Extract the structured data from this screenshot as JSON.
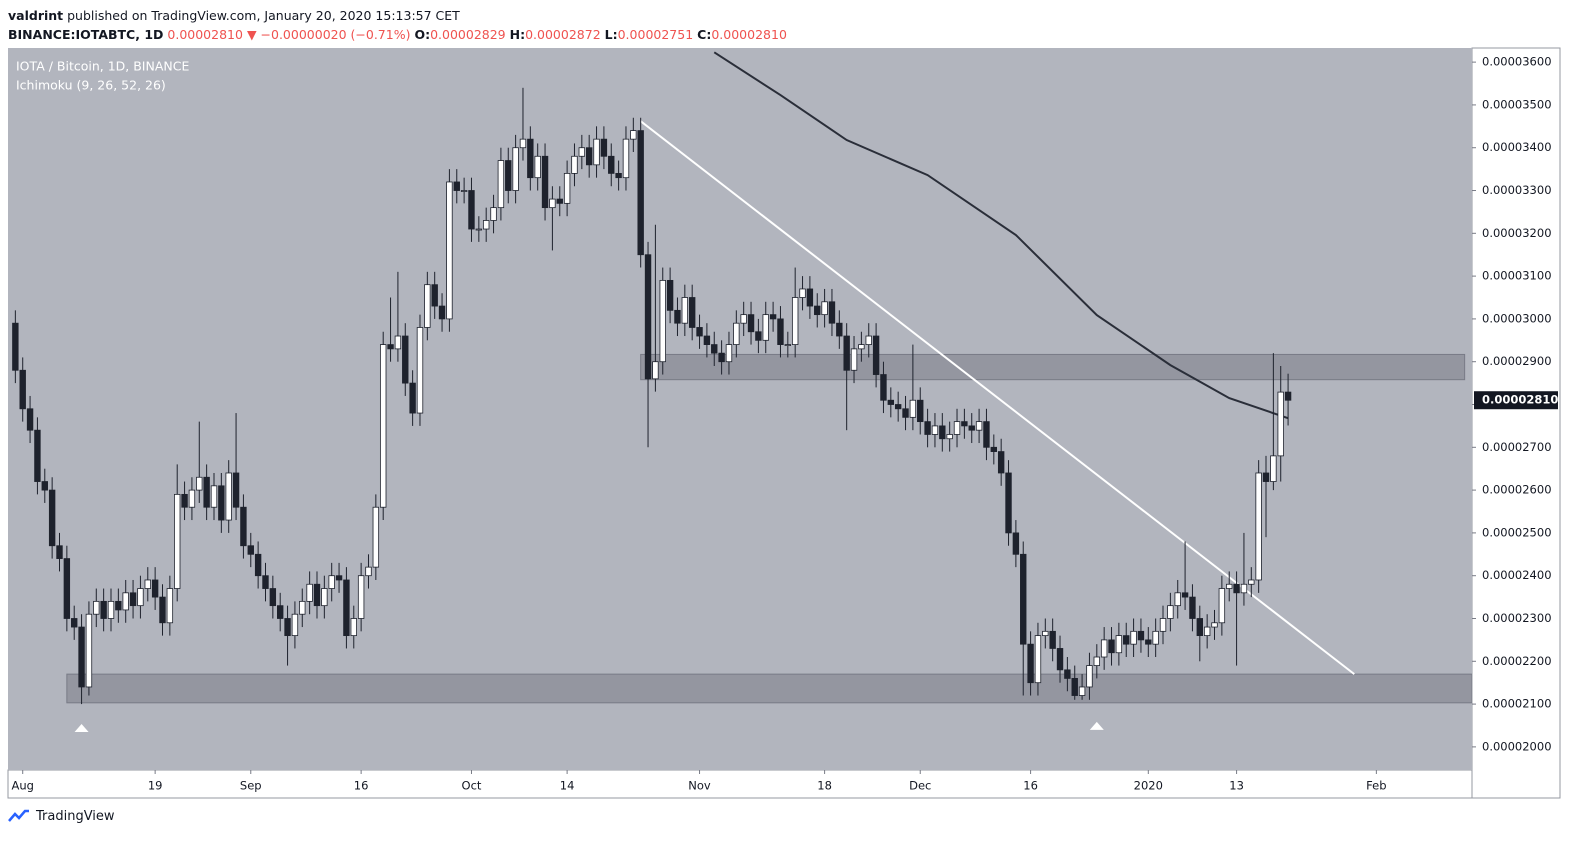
{
  "header": {
    "author": "valdrint",
    "published": " published on TradingView.com, January 20, 2020 15:13:57 CET",
    "symbol": "BINANCE:IOTABTC, 1D",
    "price": "0.00002810",
    "change": "▼ −0.00000020 (−0.71%)",
    "ohlc": [
      {
        "label": "O:",
        "value": "0.00002829"
      },
      {
        "label": "H:",
        "value": "0.00002872"
      },
      {
        "label": "L:",
        "value": "0.00002751"
      },
      {
        "label": "C:",
        "value": "0.00002810"
      }
    ]
  },
  "footer": {
    "brand": "TradingView"
  },
  "chart_data": {
    "type": "candlestick",
    "title": "IOTA / Bitcoin, 1D, BINANCE",
    "subtitle": "Ichimoku (9, 26, 52, 26)",
    "up_color": "#ffffff",
    "down_color": "#1e222d",
    "wick_color": "#1e222d",
    "background": "#b2b5be",
    "xlim": [
      "2019-07-30",
      "2020-02-14"
    ],
    "ylim": [
      1.946e-05,
      3.633e-05
    ],
    "xticks": [
      {
        "value": "2019-08-01",
        "label": "Aug"
      },
      {
        "value": "2019-08-19",
        "label": "19"
      },
      {
        "value": "2019-09-01",
        "label": "Sep"
      },
      {
        "value": "2019-09-16",
        "label": "16"
      },
      {
        "value": "2019-10-01",
        "label": "Oct"
      },
      {
        "value": "2019-10-14",
        "label": "14"
      },
      {
        "value": "2019-11-01",
        "label": "Nov"
      },
      {
        "value": "2019-11-18",
        "label": "18"
      },
      {
        "value": "2019-12-01",
        "label": "Dec"
      },
      {
        "value": "2019-12-16",
        "label": "16"
      },
      {
        "value": "2020-01-01",
        "label": "2020"
      },
      {
        "value": "2020-01-13",
        "label": "13"
      },
      {
        "value": "2020-02-01",
        "label": "Feb"
      }
    ],
    "yticks": [
      {
        "value": 2e-05,
        "label": "0.00002000"
      },
      {
        "value": 2.1e-05,
        "label": "0.00002100"
      },
      {
        "value": 2.2e-05,
        "label": "0.00002200"
      },
      {
        "value": 2.3e-05,
        "label": "0.00002300"
      },
      {
        "value": 2.4e-05,
        "label": "0.00002400"
      },
      {
        "value": 2.5e-05,
        "label": "0.00002500"
      },
      {
        "value": 2.6e-05,
        "label": "0.00002600"
      },
      {
        "value": 2.7e-05,
        "label": "0.00002700"
      },
      {
        "value": 2.8e-05,
        "label": "0.00002800"
      },
      {
        "value": 2.9e-05,
        "label": "0.00002900"
      },
      {
        "value": 3e-05,
        "label": "0.00003000"
      },
      {
        "value": 3.1e-05,
        "label": "0.00003100"
      },
      {
        "value": 3.2e-05,
        "label": "0.00003200"
      },
      {
        "value": 3.3e-05,
        "label": "0.00003300"
      },
      {
        "value": 3.4e-05,
        "label": "0.00003400"
      },
      {
        "value": 3.5e-05,
        "label": "0.00003500"
      },
      {
        "value": 3.6e-05,
        "label": "0.00003600"
      }
    ],
    "last_price": {
      "value": 2.81e-05,
      "label": "0.00002810"
    },
    "x": [
      "2019-07-31",
      "2019-08-01",
      "2019-08-02",
      "2019-08-03",
      "2019-08-04",
      "2019-08-05",
      "2019-08-06",
      "2019-08-07",
      "2019-08-08",
      "2019-08-09",
      "2019-08-10",
      "2019-08-11",
      "2019-08-12",
      "2019-08-13",
      "2019-08-14",
      "2019-08-15",
      "2019-08-16",
      "2019-08-17",
      "2019-08-18",
      "2019-08-19",
      "2019-08-20",
      "2019-08-21",
      "2019-08-22",
      "2019-08-23",
      "2019-08-24",
      "2019-08-25",
      "2019-08-26",
      "2019-08-27",
      "2019-08-28",
      "2019-08-29",
      "2019-08-30",
      "2019-08-31",
      "2019-09-01",
      "2019-09-02",
      "2019-09-03",
      "2019-09-04",
      "2019-09-05",
      "2019-09-06",
      "2019-09-07",
      "2019-09-08",
      "2019-09-09",
      "2019-09-10",
      "2019-09-11",
      "2019-09-12",
      "2019-09-13",
      "2019-09-14",
      "2019-09-15",
      "2019-09-16",
      "2019-09-17",
      "2019-09-18",
      "2019-09-19",
      "2019-09-20",
      "2019-09-21",
      "2019-09-22",
      "2019-09-23",
      "2019-09-24",
      "2019-09-25",
      "2019-09-26",
      "2019-09-27",
      "2019-09-28",
      "2019-09-29",
      "2019-09-30",
      "2019-10-01",
      "2019-10-02",
      "2019-10-03",
      "2019-10-04",
      "2019-10-05",
      "2019-10-06",
      "2019-10-07",
      "2019-10-08",
      "2019-10-09",
      "2019-10-10",
      "2019-10-11",
      "2019-10-12",
      "2019-10-13",
      "2019-10-14",
      "2019-10-15",
      "2019-10-16",
      "2019-10-17",
      "2019-10-18",
      "2019-10-19",
      "2019-10-20",
      "2019-10-21",
      "2019-10-22",
      "2019-10-23",
      "2019-10-24",
      "2019-10-25",
      "2019-10-26",
      "2019-10-27",
      "2019-10-28",
      "2019-10-29",
      "2019-10-30",
      "2019-10-31",
      "2019-11-01",
      "2019-11-02",
      "2019-11-03",
      "2019-11-04",
      "2019-11-05",
      "2019-11-06",
      "2019-11-07",
      "2019-11-08",
      "2019-11-09",
      "2019-11-10",
      "2019-11-11",
      "2019-11-12",
      "2019-11-13",
      "2019-11-14",
      "2019-11-15",
      "2019-11-16",
      "2019-11-17",
      "2019-11-18",
      "2019-11-19",
      "2019-11-20",
      "2019-11-21",
      "2019-11-22",
      "2019-11-23",
      "2019-11-24",
      "2019-11-25",
      "2019-11-26",
      "2019-11-27",
      "2019-11-28",
      "2019-11-29",
      "2019-11-30",
      "2019-12-01",
      "2019-12-02",
      "2019-12-03",
      "2019-12-04",
      "2019-12-05",
      "2019-12-06",
      "2019-12-07",
      "2019-12-08",
      "2019-12-09",
      "2019-12-10",
      "2019-12-11",
      "2019-12-12",
      "2019-12-13",
      "2019-12-14",
      "2019-12-15",
      "2019-12-16",
      "2019-12-17",
      "2019-12-18",
      "2019-12-19",
      "2019-12-20",
      "2019-12-21",
      "2019-12-22",
      "2019-12-23",
      "2019-12-24",
      "2019-12-25",
      "2019-12-26",
      "2019-12-27",
      "2019-12-28",
      "2019-12-29",
      "2019-12-30",
      "2019-12-31",
      "2020-01-01",
      "2020-01-02",
      "2020-01-03",
      "2020-01-04",
      "2020-01-05",
      "2020-01-06",
      "2020-01-07",
      "2020-01-08",
      "2020-01-09",
      "2020-01-10",
      "2020-01-11",
      "2020-01-12",
      "2020-01-13",
      "2020-01-14",
      "2020-01-15",
      "2020-01-16",
      "2020-01-17",
      "2020-01-18",
      "2020-01-19",
      "2020-01-20"
    ],
    "open": [
      2.99e-05,
      2.88e-05,
      2.79e-05,
      2.74e-05,
      2.62e-05,
      2.6e-05,
      2.47e-05,
      2.44e-05,
      2.3e-05,
      2.28e-05,
      2.14e-05,
      2.31e-05,
      2.34e-05,
      2.3e-05,
      2.34e-05,
      2.32e-05,
      2.36e-05,
      2.33e-05,
      2.37e-05,
      2.39e-05,
      2.35e-05,
      2.29e-05,
      2.37e-05,
      2.59e-05,
      2.56e-05,
      2.6e-05,
      2.63e-05,
      2.56e-05,
      2.61e-05,
      2.53e-05,
      2.64e-05,
      2.56e-05,
      2.47e-05,
      2.45e-05,
      2.4e-05,
      2.37e-05,
      2.33e-05,
      2.3e-05,
      2.26e-05,
      2.31e-05,
      2.34e-05,
      2.38e-05,
      2.33e-05,
      2.37e-05,
      2.4e-05,
      2.39e-05,
      2.26e-05,
      2.3e-05,
      2.4e-05,
      2.42e-05,
      2.56e-05,
      2.94e-05,
      2.93e-05,
      2.96e-05,
      2.85e-05,
      2.78e-05,
      2.98e-05,
      3.08e-05,
      3.03e-05,
      3e-05,
      3.32e-05,
      3.3e-05,
      3.3e-05,
      3.21e-05,
      3.21e-05,
      3.23e-05,
      3.26e-05,
      3.37e-05,
      3.3e-05,
      3.4e-05,
      3.42e-05,
      3.33e-05,
      3.38e-05,
      3.26e-05,
      3.28e-05,
      3.27e-05,
      3.34e-05,
      3.38e-05,
      3.4e-05,
      3.36e-05,
      3.42e-05,
      3.38e-05,
      3.34e-05,
      3.33e-05,
      3.42e-05,
      3.44e-05,
      3.15e-05,
      2.86e-05,
      2.9e-05,
      3.09e-05,
      3.02e-05,
      2.99e-05,
      3.05e-05,
      2.98e-05,
      2.96e-05,
      2.94e-05,
      2.92e-05,
      2.9e-05,
      2.94e-05,
      2.99e-05,
      3.01e-05,
      2.97e-05,
      2.95e-05,
      3.01e-05,
      3e-05,
      2.94e-05,
      2.94e-05,
      3.05e-05,
      3.07e-05,
      3.03e-05,
      3.01e-05,
      3.04e-05,
      2.99e-05,
      2.96e-05,
      2.88e-05,
      2.93e-05,
      2.94e-05,
      2.96e-05,
      2.87e-05,
      2.81e-05,
      2.8e-05,
      2.79e-05,
      2.77e-05,
      2.81e-05,
      2.76e-05,
      2.73e-05,
      2.75e-05,
      2.72e-05,
      2.73e-05,
      2.76e-05,
      2.75e-05,
      2.74e-05,
      2.76e-05,
      2.7e-05,
      2.69e-05,
      2.64e-05,
      2.5e-05,
      2.45e-05,
      2.24e-05,
      2.15e-05,
      2.26e-05,
      2.27e-05,
      2.23e-05,
      2.18e-05,
      2.16e-05,
      2.12e-05,
      2.14e-05,
      2.19e-05,
      2.21e-05,
      2.25e-05,
      2.22e-05,
      2.26e-05,
      2.24e-05,
      2.27e-05,
      2.25e-05,
      2.24e-05,
      2.27e-05,
      2.3e-05,
      2.33e-05,
      2.36e-05,
      2.35e-05,
      2.3e-05,
      2.26e-05,
      2.28e-05,
      2.29e-05,
      2.37e-05,
      2.38e-05,
      2.36e-05,
      2.38e-05,
      2.39e-05,
      2.64e-05,
      2.62e-05,
      2.68e-05,
      2.829e-05
    ],
    "high": [
      3.02e-05,
      2.91e-05,
      2.82e-05,
      2.77e-05,
      2.65e-05,
      2.63e-05,
      2.5e-05,
      2.47e-05,
      2.33e-05,
      2.31e-05,
      2.34e-05,
      2.37e-05,
      2.37e-05,
      2.37e-05,
      2.37e-05,
      2.39e-05,
      2.39e-05,
      2.4e-05,
      2.42e-05,
      2.42e-05,
      2.38e-05,
      2.4e-05,
      2.66e-05,
      2.62e-05,
      2.63e-05,
      2.76e-05,
      2.66e-05,
      2.64e-05,
      2.64e-05,
      2.67e-05,
      2.78e-05,
      2.59e-05,
      2.5e-05,
      2.48e-05,
      2.43e-05,
      2.4e-05,
      2.36e-05,
      2.33e-05,
      2.34e-05,
      2.37e-05,
      2.41e-05,
      2.41e-05,
      2.4e-05,
      2.43e-05,
      2.43e-05,
      2.42e-05,
      2.33e-05,
      2.43e-05,
      2.45e-05,
      2.59e-05,
      2.97e-05,
      3.05e-05,
      3.11e-05,
      2.99e-05,
      2.88e-05,
      3.01e-05,
      3.11e-05,
      3.11e-05,
      3.06e-05,
      3.35e-05,
      3.35e-05,
      3.33e-05,
      3.33e-05,
      3.24e-05,
      3.26e-05,
      3.29e-05,
      3.4e-05,
      3.4e-05,
      3.43e-05,
      3.54e-05,
      3.45e-05,
      3.41e-05,
      3.41e-05,
      3.31e-05,
      3.31e-05,
      3.37e-05,
      3.41e-05,
      3.43e-05,
      3.43e-05,
      3.45e-05,
      3.45e-05,
      3.41e-05,
      3.37e-05,
      3.45e-05,
      3.47e-05,
      3.47e-05,
      3.18e-05,
      3.22e-05,
      3.12e-05,
      3.12e-05,
      3.05e-05,
      3.08e-05,
      3.08e-05,
      3.01e-05,
      2.99e-05,
      2.97e-05,
      2.95e-05,
      2.97e-05,
      3.02e-05,
      3.04e-05,
      3.04e-05,
      3e-05,
      3.04e-05,
      3.04e-05,
      3.03e-05,
      2.97e-05,
      3.12e-05,
      3.1e-05,
      3.1e-05,
      3.06e-05,
      3.07e-05,
      3.07e-05,
      3.02e-05,
      2.99e-05,
      2.96e-05,
      2.97e-05,
      2.99e-05,
      2.99e-05,
      2.9e-05,
      2.84e-05,
      2.83e-05,
      2.82e-05,
      2.94e-05,
      2.84e-05,
      2.79e-05,
      2.78e-05,
      2.78e-05,
      2.76e-05,
      2.79e-05,
      2.79e-05,
      2.78e-05,
      2.79e-05,
      2.79e-05,
      2.73e-05,
      2.72e-05,
      2.67e-05,
      2.53e-05,
      2.48e-05,
      2.27e-05,
      2.29e-05,
      2.3e-05,
      2.3e-05,
      2.26e-05,
      2.21e-05,
      2.19e-05,
      2.17e-05,
      2.22e-05,
      2.24e-05,
      2.28e-05,
      2.28e-05,
      2.29e-05,
      2.29e-05,
      2.3e-05,
      2.3e-05,
      2.28e-05,
      2.3e-05,
      2.33e-05,
      2.36e-05,
      2.39e-05,
      2.48e-05,
      2.38e-05,
      2.33e-05,
      2.31e-05,
      2.32e-05,
      2.4e-05,
      2.41e-05,
      2.41e-05,
      2.5e-05,
      2.42e-05,
      2.67e-05,
      2.68e-05,
      2.92e-05,
      2.89e-05,
      2.872e-05
    ],
    "low": [
      2.85e-05,
      2.76e-05,
      2.71e-05,
      2.59e-05,
      2.57e-05,
      2.44e-05,
      2.41e-05,
      2.27e-05,
      2.25e-05,
      2.1e-05,
      2.12e-05,
      2.28e-05,
      2.27e-05,
      2.27e-05,
      2.29e-05,
      2.29e-05,
      2.3e-05,
      2.3e-05,
      2.34e-05,
      2.32e-05,
      2.26e-05,
      2.26e-05,
      2.34e-05,
      2.53e-05,
      2.53e-05,
      2.57e-05,
      2.53e-05,
      2.53e-05,
      2.5e-05,
      2.5e-05,
      2.53e-05,
      2.44e-05,
      2.42e-05,
      2.37e-05,
      2.34e-05,
      2.3e-05,
      2.27e-05,
      2.19e-05,
      2.23e-05,
      2.28e-05,
      2.31e-05,
      2.3e-05,
      2.3e-05,
      2.34e-05,
      2.36e-05,
      2.23e-05,
      2.23e-05,
      2.27e-05,
      2.37e-05,
      2.39e-05,
      2.53e-05,
      2.9e-05,
      2.9e-05,
      2.82e-05,
      2.75e-05,
      2.75e-05,
      2.95e-05,
      3e-05,
      2.97e-05,
      2.97e-05,
      3.27e-05,
      3.27e-05,
      3.18e-05,
      3.18e-05,
      3.18e-05,
      3.2e-05,
      3.23e-05,
      3.27e-05,
      3.27e-05,
      3.37e-05,
      3.3e-05,
      3.3e-05,
      3.23e-05,
      3.16e-05,
      3.24e-05,
      3.24e-05,
      3.31e-05,
      3.35e-05,
      3.33e-05,
      3.33e-05,
      3.35e-05,
      3.31e-05,
      3.3e-05,
      3.3e-05,
      3.39e-05,
      3.12e-05,
      2.7e-05,
      2.83e-05,
      2.87e-05,
      2.99e-05,
      2.96e-05,
      2.96e-05,
      2.95e-05,
      2.93e-05,
      2.91e-05,
      2.89e-05,
      2.87e-05,
      2.87e-05,
      2.91e-05,
      2.96e-05,
      2.94e-05,
      2.92e-05,
      2.92e-05,
      2.97e-05,
      2.91e-05,
      2.91e-05,
      2.91e-05,
      3.02e-05,
      3e-05,
      2.98e-05,
      2.98e-05,
      2.96e-05,
      2.93e-05,
      2.74e-05,
      2.85e-05,
      2.9e-05,
      2.91e-05,
      2.84e-05,
      2.78e-05,
      2.77e-05,
      2.76e-05,
      2.74e-05,
      2.74e-05,
      2.73e-05,
      2.7e-05,
      2.7e-05,
      2.69e-05,
      2.69e-05,
      2.7e-05,
      2.72e-05,
      2.71e-05,
      2.71e-05,
      2.67e-05,
      2.66e-05,
      2.61e-05,
      2.47e-05,
      2.42e-05,
      2.12e-05,
      2.12e-05,
      2.12e-05,
      2.23e-05,
      2.2e-05,
      2.15e-05,
      2.13e-05,
      2.11e-05,
      2.11e-05,
      2.11e-05,
      2.16e-05,
      2.18e-05,
      2.19e-05,
      2.19e-05,
      2.21e-05,
      2.21e-05,
      2.22e-05,
      2.21e-05,
      2.21e-05,
      2.24e-05,
      2.27e-05,
      2.3e-05,
      2.32e-05,
      2.27e-05,
      2.2e-05,
      2.23e-05,
      2.25e-05,
      2.26e-05,
      2.34e-05,
      2.19e-05,
      2.33e-05,
      2.35e-05,
      2.36e-05,
      2.49e-05,
      2.6e-05,
      2.62e-05,
      2.751e-05
    ],
    "close": [
      2.88e-05,
      2.79e-05,
      2.74e-05,
      2.62e-05,
      2.6e-05,
      2.47e-05,
      2.44e-05,
      2.3e-05,
      2.28e-05,
      2.14e-05,
      2.31e-05,
      2.34e-05,
      2.3e-05,
      2.34e-05,
      2.32e-05,
      2.36e-05,
      2.33e-05,
      2.37e-05,
      2.39e-05,
      2.35e-05,
      2.29e-05,
      2.37e-05,
      2.59e-05,
      2.56e-05,
      2.6e-05,
      2.63e-05,
      2.56e-05,
      2.61e-05,
      2.53e-05,
      2.64e-05,
      2.56e-05,
      2.47e-05,
      2.45e-05,
      2.4e-05,
      2.37e-05,
      2.33e-05,
      2.3e-05,
      2.26e-05,
      2.31e-05,
      2.34e-05,
      2.38e-05,
      2.33e-05,
      2.37e-05,
      2.4e-05,
      2.39e-05,
      2.26e-05,
      2.3e-05,
      2.4e-05,
      2.42e-05,
      2.56e-05,
      2.94e-05,
      2.93e-05,
      2.96e-05,
      2.85e-05,
      2.78e-05,
      2.98e-05,
      3.08e-05,
      3.03e-05,
      3e-05,
      3.32e-05,
      3.3e-05,
      3.3e-05,
      3.21e-05,
      3.21e-05,
      3.23e-05,
      3.26e-05,
      3.37e-05,
      3.3e-05,
      3.4e-05,
      3.42e-05,
      3.33e-05,
      3.38e-05,
      3.26e-05,
      3.28e-05,
      3.27e-05,
      3.34e-05,
      3.38e-05,
      3.4e-05,
      3.36e-05,
      3.42e-05,
      3.38e-05,
      3.34e-05,
      3.33e-05,
      3.42e-05,
      3.44e-05,
      3.15e-05,
      2.86e-05,
      2.9e-05,
      3.09e-05,
      3.02e-05,
      2.99e-05,
      3.05e-05,
      2.98e-05,
      2.96e-05,
      2.94e-05,
      2.92e-05,
      2.9e-05,
      2.94e-05,
      2.99e-05,
      3.01e-05,
      2.97e-05,
      2.95e-05,
      3.01e-05,
      3e-05,
      2.94e-05,
      2.94e-05,
      3.05e-05,
      3.07e-05,
      3.03e-05,
      3.01e-05,
      3.04e-05,
      2.99e-05,
      2.96e-05,
      2.88e-05,
      2.93e-05,
      2.94e-05,
      2.96e-05,
      2.87e-05,
      2.81e-05,
      2.8e-05,
      2.79e-05,
      2.77e-05,
      2.81e-05,
      2.76e-05,
      2.73e-05,
      2.75e-05,
      2.72e-05,
      2.73e-05,
      2.76e-05,
      2.75e-05,
      2.74e-05,
      2.76e-05,
      2.7e-05,
      2.69e-05,
      2.64e-05,
      2.5e-05,
      2.45e-05,
      2.24e-05,
      2.15e-05,
      2.26e-05,
      2.27e-05,
      2.23e-05,
      2.18e-05,
      2.16e-05,
      2.12e-05,
      2.14e-05,
      2.19e-05,
      2.21e-05,
      2.25e-05,
      2.22e-05,
      2.26e-05,
      2.24e-05,
      2.27e-05,
      2.25e-05,
      2.24e-05,
      2.27e-05,
      2.3e-05,
      2.33e-05,
      2.36e-05,
      2.35e-05,
      2.3e-05,
      2.26e-05,
      2.28e-05,
      2.29e-05,
      2.37e-05,
      2.38e-05,
      2.36e-05,
      2.38e-05,
      2.39e-05,
      2.64e-05,
      2.62e-05,
      2.68e-05,
      2.829e-05,
      2.81e-05
    ],
    "moving_average": {
      "color": "#2a2e39",
      "x": [
        "2019-11-03",
        "2019-11-12",
        "2019-11-21",
        "2019-12-02",
        "2019-12-14",
        "2019-12-25",
        "2020-01-04",
        "2020-01-12",
        "2020-01-20"
      ],
      "values": [
        3.623e-05,
        3.523e-05,
        3.418e-05,
        3.336e-05,
        3.196e-05,
        3.009e-05,
        2.892e-05,
        2.815e-05,
        2.768e-05
      ]
    },
    "trendline": {
      "color": "#ffffff",
      "x": [
        "2019-10-24",
        "2020-01-29"
      ],
      "values": [
        3.462e-05,
        2.17e-05
      ]
    },
    "zones": [
      {
        "from": "2019-10-24",
        "to": "2020-02-13",
        "low": 2.858e-05,
        "high": 2.917e-05
      },
      {
        "from": "2019-08-07",
        "to": "2020-02-14",
        "low": 2.103e-05,
        "high": 2.17e-05
      }
    ],
    "markers": [
      {
        "x": "2019-08-09",
        "price": 2.044e-05
      },
      {
        "x": "2019-12-25",
        "price": 2.049e-05
      }
    ]
  }
}
